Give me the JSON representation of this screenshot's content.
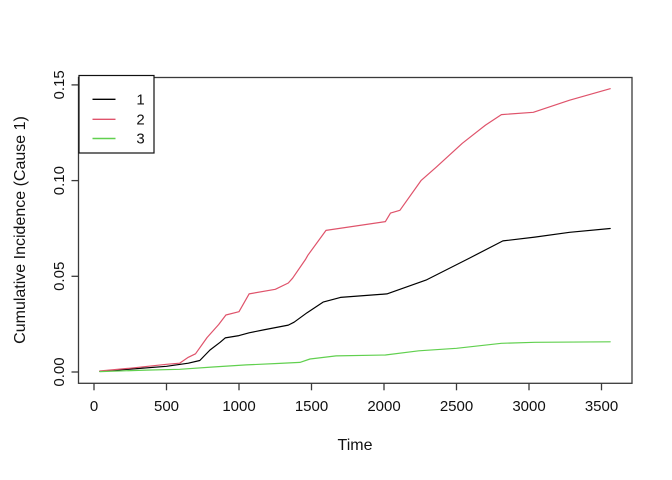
{
  "figure": {
    "background": "#ffffff",
    "frame_color": "#3a3a3a",
    "text_color": "#111111"
  },
  "chart_data": {
    "type": "line",
    "title": "",
    "xlabel": "Time",
    "ylabel": "Cumulative Incidence (Cause 1)",
    "xlim": [
      0,
      3560
    ],
    "ylim": [
      0,
      0.15
    ],
    "x_ticks": [
      0,
      500,
      1000,
      1500,
      2000,
      2500,
      3000,
      3500
    ],
    "x_tick_labels": [
      "0",
      "500",
      "1000",
      "1500",
      "2000",
      "2500",
      "3000",
      "3500"
    ],
    "y_ticks": [
      0,
      0.05,
      0.1,
      0.15
    ],
    "y_tick_labels": [
      "0.00",
      "0.05",
      "0.10",
      "0.15"
    ],
    "grid": false,
    "legend": {
      "position": "topleft",
      "entries": [
        {
          "label": "1",
          "color": "#000000"
        },
        {
          "label": "2",
          "color": "#DF536B"
        },
        {
          "label": "3",
          "color": "#61D04F"
        }
      ]
    },
    "series": [
      {
        "name": "1",
        "color": "#000000",
        "points": [
          [
            40,
            0.0003
          ],
          [
            250,
            0.0015
          ],
          [
            500,
            0.003
          ],
          [
            650,
            0.0046
          ],
          [
            730,
            0.006
          ],
          [
            800,
            0.0115
          ],
          [
            870,
            0.0155
          ],
          [
            905,
            0.0178
          ],
          [
            1000,
            0.019
          ],
          [
            1070,
            0.0205
          ],
          [
            1170,
            0.022
          ],
          [
            1340,
            0.0245
          ],
          [
            1380,
            0.026
          ],
          [
            1470,
            0.031
          ],
          [
            1580,
            0.0365
          ],
          [
            1700,
            0.039
          ],
          [
            2020,
            0.0408
          ],
          [
            2290,
            0.048
          ],
          [
            2590,
            0.0595
          ],
          [
            2820,
            0.0685
          ],
          [
            3040,
            0.0705
          ],
          [
            3280,
            0.073
          ],
          [
            3560,
            0.075
          ]
        ]
      },
      {
        "name": "2",
        "color": "#DF536B",
        "points": [
          [
            40,
            0.0005
          ],
          [
            250,
            0.002
          ],
          [
            500,
            0.004
          ],
          [
            590,
            0.0046
          ],
          [
            650,
            0.0077
          ],
          [
            700,
            0.0095
          ],
          [
            780,
            0.018
          ],
          [
            860,
            0.0248
          ],
          [
            910,
            0.0298
          ],
          [
            1000,
            0.0315
          ],
          [
            1070,
            0.0408
          ],
          [
            1250,
            0.0432
          ],
          [
            1340,
            0.0465
          ],
          [
            1370,
            0.049
          ],
          [
            1460,
            0.059
          ],
          [
            1475,
            0.061
          ],
          [
            1600,
            0.074
          ],
          [
            2010,
            0.0786
          ],
          [
            2045,
            0.083
          ],
          [
            2110,
            0.0845
          ],
          [
            2255,
            0.1
          ],
          [
            2360,
            0.107
          ],
          [
            2540,
            0.1195
          ],
          [
            2700,
            0.129
          ],
          [
            2810,
            0.1345
          ],
          [
            3030,
            0.1357
          ],
          [
            3280,
            0.142
          ],
          [
            3560,
            0.148
          ]
        ]
      },
      {
        "name": "3",
        "color": "#61D04F",
        "points": [
          [
            40,
            0.0002
          ],
          [
            360,
            0.001
          ],
          [
            590,
            0.0014
          ],
          [
            820,
            0.0026
          ],
          [
            1050,
            0.0037
          ],
          [
            1280,
            0.0045
          ],
          [
            1420,
            0.005
          ],
          [
            1490,
            0.0068
          ],
          [
            1670,
            0.0084
          ],
          [
            2010,
            0.0089
          ],
          [
            2240,
            0.0111
          ],
          [
            2500,
            0.0124
          ],
          [
            2810,
            0.015
          ],
          [
            3040,
            0.0155
          ],
          [
            3560,
            0.0158
          ]
        ]
      }
    ]
  }
}
